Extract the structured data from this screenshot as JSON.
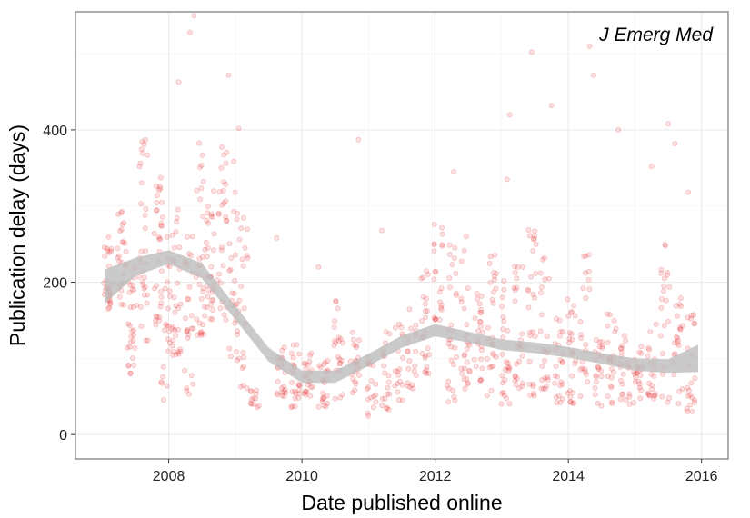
{
  "chart_data": {
    "type": "scatter",
    "title": "",
    "annotation": "J Emerg Med",
    "xlabel": "Date published online",
    "ylabel": "Publication delay (days)",
    "xlim": [
      2006.6,
      2016.4
    ],
    "ylim": [
      -32,
      555
    ],
    "x_ticks": [
      2008,
      2010,
      2012,
      2014,
      2016
    ],
    "x_tick_labels": [
      "2008",
      "2010",
      "2012",
      "2014",
      "2016"
    ],
    "y_ticks": [
      0,
      200,
      400
    ],
    "y_tick_labels": [
      "0",
      "200",
      "400"
    ],
    "grid": true,
    "legend": "none",
    "colors": {
      "points": "#e41a1c",
      "smooth_band": "#bdbdbd",
      "panel_border": "#7f7f7f",
      "grid_major": "#ebebeb",
      "grid_minor": "#f5f5f5"
    },
    "point_opacity": 0.13,
    "clusters": [
      {
        "x": 2007.08,
        "y_low": 160,
        "y_high": 260,
        "n": 28
      },
      {
        "x": 2007.3,
        "y_low": 170,
        "y_high": 300,
        "n": 26
      },
      {
        "x": 2007.45,
        "y_low": 80,
        "y_high": 220,
        "n": 28
      },
      {
        "x": 2007.62,
        "y_low": 120,
        "y_high": 390,
        "n": 32
      },
      {
        "x": 2007.85,
        "y_low": 140,
        "y_high": 350,
        "n": 30
      },
      {
        "x": 2007.95,
        "y_low": 45,
        "y_high": 280,
        "n": 26
      },
      {
        "x": 2008.12,
        "y_low": 100,
        "y_high": 300,
        "n": 30
      },
      {
        "x": 2008.3,
        "y_low": 50,
        "y_high": 270,
        "n": 26
      },
      {
        "x": 2008.48,
        "y_low": 130,
        "y_high": 390,
        "n": 32
      },
      {
        "x": 2008.62,
        "y_low": 150,
        "y_high": 320,
        "n": 30
      },
      {
        "x": 2008.8,
        "y_low": 150,
        "y_high": 380,
        "n": 28
      },
      {
        "x": 2008.97,
        "y_low": 90,
        "y_high": 370,
        "n": 26
      },
      {
        "x": 2009.12,
        "y_low": 60,
        "y_high": 320,
        "n": 22
      },
      {
        "x": 2009.3,
        "y_low": 35,
        "y_high": 60,
        "n": 12
      },
      {
        "x": 2009.7,
        "y_low": 50,
        "y_high": 125,
        "n": 22
      },
      {
        "x": 2009.9,
        "y_low": 35,
        "y_high": 130,
        "n": 24
      },
      {
        "x": 2010.1,
        "y_low": 50,
        "y_high": 110,
        "n": 22
      },
      {
        "x": 2010.32,
        "y_low": 35,
        "y_high": 100,
        "n": 22
      },
      {
        "x": 2010.55,
        "y_low": 45,
        "y_high": 180,
        "n": 22
      },
      {
        "x": 2010.8,
        "y_low": 55,
        "y_high": 140,
        "n": 22
      },
      {
        "x": 2011.05,
        "y_low": 20,
        "y_high": 110,
        "n": 18
      },
      {
        "x": 2011.25,
        "y_low": 30,
        "y_high": 140,
        "n": 20
      },
      {
        "x": 2011.45,
        "y_low": 40,
        "y_high": 160,
        "n": 18
      },
      {
        "x": 2011.65,
        "y_low": 60,
        "y_high": 170,
        "n": 20
      },
      {
        "x": 2011.85,
        "y_low": 80,
        "y_high": 220,
        "n": 24
      },
      {
        "x": 2012.05,
        "y_low": 150,
        "y_high": 285,
        "n": 22
      },
      {
        "x": 2012.25,
        "y_low": 40,
        "y_high": 250,
        "n": 28
      },
      {
        "x": 2012.45,
        "y_low": 60,
        "y_high": 270,
        "n": 26
      },
      {
        "x": 2012.65,
        "y_low": 70,
        "y_high": 200,
        "n": 24
      },
      {
        "x": 2012.85,
        "y_low": 50,
        "y_high": 260,
        "n": 26
      },
      {
        "x": 2013.05,
        "y_low": 40,
        "y_high": 220,
        "n": 26
      },
      {
        "x": 2013.25,
        "y_low": 60,
        "y_high": 250,
        "n": 26
      },
      {
        "x": 2013.45,
        "y_low": 50,
        "y_high": 270,
        "n": 26
      },
      {
        "x": 2013.65,
        "y_low": 60,
        "y_high": 240,
        "n": 24
      },
      {
        "x": 2013.85,
        "y_low": 40,
        "y_high": 160,
        "n": 24
      },
      {
        "x": 2014.05,
        "y_low": 40,
        "y_high": 180,
        "n": 24
      },
      {
        "x": 2014.25,
        "y_low": 40,
        "y_high": 250,
        "n": 22
      },
      {
        "x": 2014.45,
        "y_low": 35,
        "y_high": 140,
        "n": 22
      },
      {
        "x": 2014.65,
        "y_low": 40,
        "y_high": 180,
        "n": 22
      },
      {
        "x": 2014.85,
        "y_low": 35,
        "y_high": 130,
        "n": 22
      },
      {
        "x": 2015.05,
        "y_low": 35,
        "y_high": 120,
        "n": 22
      },
      {
        "x": 2015.25,
        "y_low": 45,
        "y_high": 170,
        "n": 22
      },
      {
        "x": 2015.45,
        "y_low": 40,
        "y_high": 250,
        "n": 22
      },
      {
        "x": 2015.65,
        "y_low": 40,
        "y_high": 180,
        "n": 22
      },
      {
        "x": 2015.85,
        "y_low": 30,
        "y_high": 160,
        "n": 22
      }
    ],
    "outliers": [
      {
        "x": 2008.38,
        "y": 550
      },
      {
        "x": 2008.32,
        "y": 528
      },
      {
        "x": 2008.15,
        "y": 463
      },
      {
        "x": 2008.9,
        "y": 472
      },
      {
        "x": 2009.05,
        "y": 402
      },
      {
        "x": 2010.85,
        "y": 387
      },
      {
        "x": 2013.12,
        "y": 420
      },
      {
        "x": 2013.45,
        "y": 502
      },
      {
        "x": 2013.75,
        "y": 432
      },
      {
        "x": 2014.32,
        "y": 510
      },
      {
        "x": 2014.38,
        "y": 472
      },
      {
        "x": 2014.75,
        "y": 400
      },
      {
        "x": 2015.5,
        "y": 408
      },
      {
        "x": 2015.6,
        "y": 382
      },
      {
        "x": 2015.25,
        "y": 352
      },
      {
        "x": 2015.8,
        "y": 318
      },
      {
        "x": 2009.62,
        "y": 258
      },
      {
        "x": 2010.25,
        "y": 220
      },
      {
        "x": 2011.2,
        "y": 268
      },
      {
        "x": 2012.28,
        "y": 345
      },
      {
        "x": 2013.08,
        "y": 335
      }
    ],
    "smooth": {
      "x": [
        2007.05,
        2007.5,
        2008.0,
        2008.5,
        2009.0,
        2009.5,
        2010.0,
        2010.5,
        2011.0,
        2011.5,
        2012.0,
        2012.5,
        2013.0,
        2013.5,
        2014.0,
        2014.5,
        2015.0,
        2015.5,
        2015.95
      ],
      "y": [
        195,
        220,
        233,
        215,
        160,
        105,
        76,
        76,
        98,
        122,
        137,
        128,
        118,
        114,
        108,
        100,
        92,
        90,
        100
      ],
      "se": [
        22,
        12,
        9,
        10,
        9,
        9,
        8,
        8,
        8,
        8,
        8,
        7,
        7,
        7,
        7,
        7,
        8,
        9,
        18
      ]
    }
  }
}
